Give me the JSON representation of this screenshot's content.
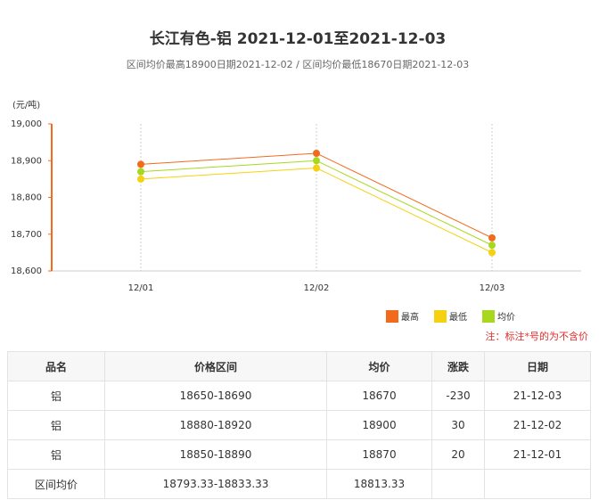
{
  "chart_data": {
    "type": "line",
    "title": "长江有色-铝 2021-12-01至2021-12-03",
    "subtitle": "区间均价最高18900日期2021-12-02 / 区间均价最低18670日期2021-12-03",
    "y_label": "(元/吨)",
    "categories": [
      "12/01",
      "12/02",
      "12/03"
    ],
    "series": [
      {
        "name": "最高",
        "color": "#f26a1b",
        "values": [
          18890,
          18920,
          18690
        ]
      },
      {
        "name": "最低",
        "color": "#f5d10f",
        "values": [
          18850,
          18880,
          18650
        ]
      },
      {
        "name": "均价",
        "color": "#a8d81e",
        "values": [
          18870,
          18900,
          18670
        ]
      }
    ],
    "ylim": [
      18600,
      19000
    ],
    "yticks": [
      {
        "value": 18600,
        "label": "18,600"
      },
      {
        "value": 18700,
        "label": "18,700"
      },
      {
        "value": 18800,
        "label": "18,800"
      },
      {
        "value": 18900,
        "label": "18,900"
      },
      {
        "value": 19000,
        "label": "19,000"
      }
    ],
    "grid": true,
    "note": "注：标注*号的为不含价"
  },
  "table": {
    "header": [
      "品名",
      "价格区间",
      "均价",
      "涨跌",
      "日期"
    ],
    "rows": [
      [
        "铝",
        "18650-18690",
        "18670",
        "-230",
        "21-12-03"
      ],
      [
        "铝",
        "18880-18920",
        "18900",
        "30",
        "21-12-02"
      ],
      [
        "铝",
        "18850-18890",
        "18870",
        "20",
        "21-12-01"
      ],
      [
        "区间均价",
        "18793.33-18833.33",
        "18813.33",
        "",
        ""
      ]
    ]
  }
}
